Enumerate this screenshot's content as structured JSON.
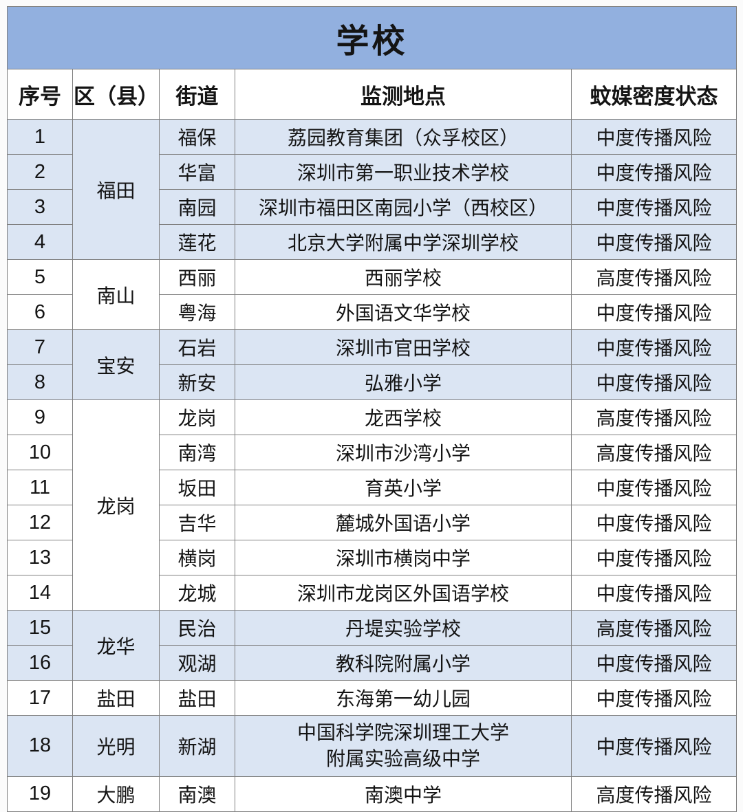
{
  "title": "学校",
  "columns": {
    "no": "序号",
    "district": "区（县）",
    "street": "街道",
    "site": "监测地点",
    "status": "蚊媒密度状态"
  },
  "status_values": {
    "medium": "中度传播风险",
    "high": "高度传播风险"
  },
  "groups": [
    {
      "district": "福田",
      "shaded": true,
      "rows": [
        {
          "no": "1",
          "street": "福保",
          "site": "荔园教育集团（众孚校区）",
          "status": "中度传播风险"
        },
        {
          "no": "2",
          "street": "华富",
          "site": "深圳市第一职业技术学校",
          "status": "中度传播风险"
        },
        {
          "no": "3",
          "street": "南园",
          "site": "深圳市福田区南园小学（西校区）",
          "status": "中度传播风险"
        },
        {
          "no": "4",
          "street": "莲花",
          "site": "北京大学附属中学深圳学校",
          "status": "中度传播风险"
        }
      ]
    },
    {
      "district": "南山",
      "shaded": false,
      "rows": [
        {
          "no": "5",
          "street": "西丽",
          "site": "西丽学校",
          "status": "高度传播风险"
        },
        {
          "no": "6",
          "street": "粤海",
          "site": "外国语文华学校",
          "status": "中度传播风险"
        }
      ]
    },
    {
      "district": "宝安",
      "shaded": true,
      "rows": [
        {
          "no": "7",
          "street": "石岩",
          "site": "深圳市官田学校",
          "status": "中度传播风险"
        },
        {
          "no": "8",
          "street": "新安",
          "site": "弘雅小学",
          "status": "中度传播风险"
        }
      ]
    },
    {
      "district": "龙岗",
      "shaded": false,
      "rows": [
        {
          "no": "9",
          "street": "龙岗",
          "site": "龙西学校",
          "status": "高度传播风险"
        },
        {
          "no": "10",
          "street": "南湾",
          "site": "深圳市沙湾小学",
          "status": "高度传播风险"
        },
        {
          "no": "11",
          "street": "坂田",
          "site": "育英小学",
          "status": "中度传播风险"
        },
        {
          "no": "12",
          "street": "吉华",
          "site": "麓城外国语小学",
          "status": "中度传播风险"
        },
        {
          "no": "13",
          "street": "横岗",
          "site": "深圳市横岗中学",
          "status": "中度传播风险"
        },
        {
          "no": "14",
          "street": "龙城",
          "site": "深圳市龙岗区外国语学校",
          "status": "中度传播风险"
        }
      ]
    },
    {
      "district": "龙华",
      "shaded": true,
      "rows": [
        {
          "no": "15",
          "street": "民治",
          "site": "丹堤实验学校",
          "status": "高度传播风险"
        },
        {
          "no": "16",
          "street": "观湖",
          "site": "教科院附属小学",
          "status": "中度传播风险"
        }
      ]
    },
    {
      "district": "盐田",
      "shaded": false,
      "rows": [
        {
          "no": "17",
          "street": "盐田",
          "site": "东海第一幼儿园",
          "status": "中度传播风险"
        }
      ]
    },
    {
      "district": "光明",
      "shaded": true,
      "rows": [
        {
          "no": "18",
          "street": "新湖",
          "site": "中国科学院深圳理工大学\n附属实验高级中学",
          "status": "中度传播风险"
        }
      ]
    },
    {
      "district": "大鹏",
      "shaded": false,
      "rows": [
        {
          "no": "19",
          "street": "南澳",
          "site": "南澳中学",
          "status": "高度传播风险"
        }
      ]
    }
  ],
  "colors": {
    "title_bg": "#92b0df",
    "shaded_row_bg": "#dbe5f3",
    "plain_row_bg": "#ffffff",
    "border": "#7f7f7f",
    "text": "#141414"
  }
}
